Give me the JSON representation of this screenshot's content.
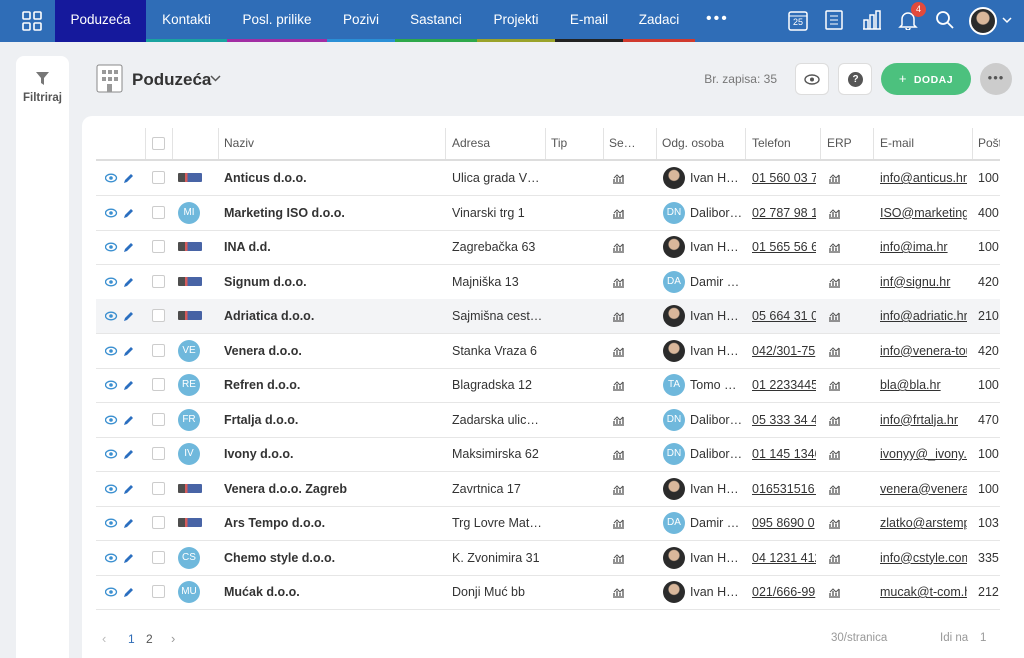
{
  "nav": {
    "items": [
      "Poduzeća",
      "Kontakti",
      "Posl. prilike",
      "Pozivi",
      "Sastanci",
      "Projekti",
      "E-mail",
      "Zadaci"
    ],
    "calendar_day": "25",
    "notifications": "4"
  },
  "sidebar": {
    "filter": "Filtriraj"
  },
  "header": {
    "title": "Poduzeća",
    "count": "Br. zapisa: 35",
    "add": "DODAJ"
  },
  "table": {
    "columns": [
      "Naziv",
      "Adresa",
      "Tip",
      "Se…",
      "Odg. osoba",
      "Telefon",
      "ERP",
      "E-mail",
      "Pošt"
    ],
    "rows": [
      {
        "name": "Anticus d.o.o.",
        "address": "Ulica grada V…",
        "person": "Ivan H…",
        "phone": "01 560 03 7",
        "email": "info@anticus.hr",
        "post": "100"
      },
      {
        "initials": "MI",
        "name": "Marketing ISO d.o.o.",
        "address": "Vinarski trg 1",
        "person_initials": "DN",
        "person": "Dalibor…",
        "phone": "02 787 98 1",
        "email": "ISO@marketing",
        "post": "400"
      },
      {
        "name": "INA d.d.",
        "address": "Zagrebačka 63",
        "person": "Ivan H…",
        "phone": "01 565 56 6",
        "email": "info@ima.hr",
        "post": "100"
      },
      {
        "name": "Signum d.o.o.",
        "address": "Majniška 13",
        "person_initials": "DA",
        "person": "Damir …",
        "email": "inf@signu.hr",
        "post": "420"
      },
      {
        "name": "Adriatica d.o.o.",
        "address": "Sajmišna cest…",
        "person": "Ivan H…",
        "phone": "05 664 31 0",
        "email": "info@adriatic.hr",
        "post": "210"
      },
      {
        "initials": "VE",
        "name": "Venera d.o.o.",
        "address": "Stanka Vraza 6",
        "person": "Ivan H…",
        "phone": "042/301-75",
        "email": "info@venera-tou",
        "post": "420"
      },
      {
        "initials": "RE",
        "name": "Refren d.o.o.",
        "address": "Blagradska 12",
        "person_initials": "TA",
        "person": "Tomo …",
        "phone": "01 2233445",
        "email": "bla@bla.hr",
        "post": "100"
      },
      {
        "initials": "FR",
        "name": "Frtalja d.o.o.",
        "address": "Zadarska ulic…",
        "person_initials": "DN",
        "person": "Dalibor…",
        "phone": "05 333 34 4",
        "email": "info@frtalja.hr",
        "post": "470"
      },
      {
        "initials": "IV",
        "name": "Ivony d.o.o.",
        "address": "Maksimirska 62",
        "person_initials": "DN",
        "person": "Dalibor…",
        "phone": "01 145 1346",
        "email": "ivonyy@_ivony.c",
        "post": "100"
      },
      {
        "name": "Venera d.o.o. Zagreb",
        "address": "Zavrtnica 17",
        "person": "Ivan H…",
        "phone": "016531516…",
        "email": "venera@venera",
        "post": "100"
      },
      {
        "name": "Ars Tempo d.o.o.",
        "address": "Trg Lovre Mat…",
        "person_initials": "DA",
        "person": "Damir …",
        "phone": "095 8690 0",
        "email": "zlatko@arstemp",
        "post": "103"
      },
      {
        "initials": "CS",
        "name": "Chemo style d.o.o.",
        "address": "K. Zvonimira 31",
        "person": "Ivan H…",
        "phone": "04 1231 412",
        "email": "info@cstyle.com",
        "post": "335"
      },
      {
        "initials": "MU",
        "name": "Mućak d.o.o.",
        "address": "Donji Muć bb",
        "person": "Ivan H…",
        "phone": "021/666-99",
        "email": "mucak@t-com.h",
        "post": "212"
      }
    ]
  },
  "pagination": {
    "pages": [
      "1",
      "2"
    ],
    "per_page": "30/stranica",
    "goto": "Idi na",
    "goto_value": "1"
  }
}
